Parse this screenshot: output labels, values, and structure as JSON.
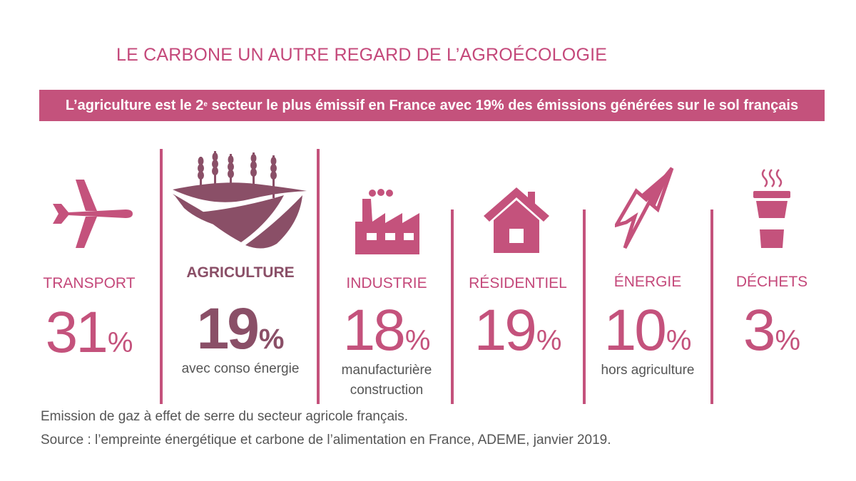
{
  "title": "LE CARBONE UN AUTRE REGARD DE L’AGROÉCOLOGIE",
  "banner": {
    "before": "L’agriculture est le 2",
    "sup": "e",
    "after": " secteur le plus émissif en France avec 19% des émissions générées sur le sol français"
  },
  "colors": {
    "accent": "#c4527c",
    "highlight": "#8a4f67",
    "text": "#555555"
  },
  "chart_data": {
    "type": "table",
    "unit": "%",
    "categories": [
      "TRANSPORT",
      "AGRICULTURE",
      "INDUSTRIE",
      "RÉSIDENTIEL",
      "ÉNERGIE",
      "DÉCHETS"
    ],
    "values": [
      31,
      19,
      18,
      19,
      10,
      3
    ],
    "highlight": "AGRICULTURE",
    "icons": [
      "plane-icon",
      "field-icon",
      "factory-icon",
      "house-icon",
      "lightning-icon",
      "cup-icon"
    ]
  },
  "sectors": [
    {
      "label": "TRANSPORT",
      "value": "31",
      "unit": "%",
      "note1": "",
      "note2": ""
    },
    {
      "label": "AGRICULTURE",
      "value": "19",
      "unit": "%",
      "note1": "avec conso énergie",
      "note2": ""
    },
    {
      "label": "INDUSTRIE",
      "value": "18",
      "unit": "%",
      "note1": "manufacturière",
      "note2": "construction"
    },
    {
      "label": "RÉSIDENTIEL",
      "value": "19",
      "unit": "%",
      "note1": "",
      "note2": ""
    },
    {
      "label": "ÉNERGIE",
      "value": "10",
      "unit": "%",
      "note1": "hors agriculture",
      "note2": ""
    },
    {
      "label": "DÉCHETS",
      "value": "3",
      "unit": "%",
      "note1": "",
      "note2": ""
    }
  ],
  "source": {
    "line1": "Emission de gaz à effet de serre du secteur agricole français.",
    "line2": "Source : l’empreinte énergétique et carbone de l’alimentation en France, ADEME, janvier 2019."
  }
}
